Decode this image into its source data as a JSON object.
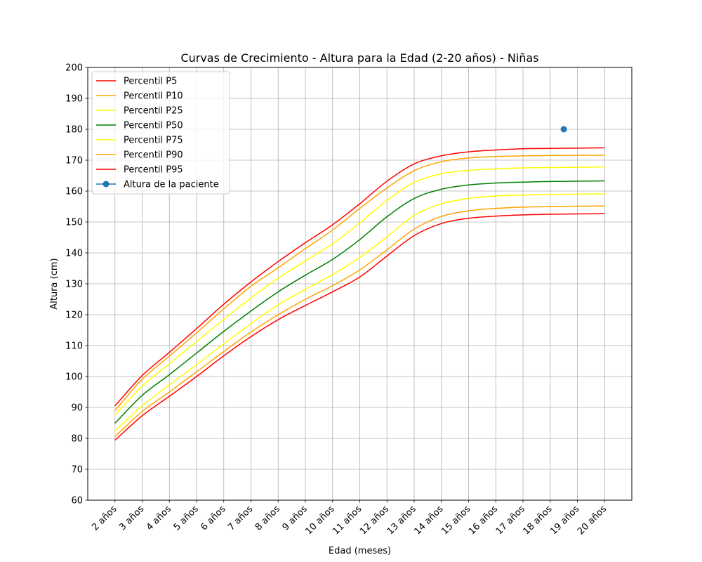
{
  "chart_data": {
    "type": "line",
    "title": "Curvas de Crecimiento - Altura para la Edad (2-20 años) - Niñas",
    "xlabel": "Edad (meses)",
    "ylabel": "Altura (cm)",
    "xlim": [
      1,
      21
    ],
    "ylim": [
      60,
      200
    ],
    "yticks": [
      60,
      70,
      80,
      90,
      100,
      110,
      120,
      130,
      140,
      150,
      160,
      170,
      180,
      190,
      200
    ],
    "xticks": [
      2,
      3,
      4,
      5,
      6,
      7,
      8,
      9,
      10,
      11,
      12,
      13,
      14,
      15,
      16,
      17,
      18,
      19,
      20
    ],
    "xtick_labels": [
      "2 años",
      "3 años",
      "4 años",
      "5 años",
      "6 años",
      "7 años",
      "8 años",
      "9 años",
      "10 años",
      "11 años",
      "12 años",
      "13 años",
      "14 años",
      "15 años",
      "16 años",
      "17 años",
      "18 años",
      "19 años",
      "20 años"
    ],
    "grid": true,
    "legend_position": "upper-left",
    "x": [
      2,
      3,
      4,
      5,
      6,
      7,
      8,
      9,
      10,
      11,
      12,
      13,
      14,
      15,
      16,
      17,
      18,
      19,
      20
    ],
    "series": [
      {
        "name": "Percentil P5",
        "color": "#ff0000",
        "values": [
          79.4,
          87.3,
          93.6,
          100.0,
          106.7,
          112.9,
          118.4,
          123.0,
          127.4,
          132.2,
          139.0,
          145.6,
          149.5,
          151.2,
          151.9,
          152.3,
          152.5,
          152.6,
          152.7
        ]
      },
      {
        "name": "Percentil P10",
        "color": "#ffa500",
        "values": [
          80.6,
          88.7,
          95.0,
          101.5,
          108.1,
          114.4,
          120.0,
          125.0,
          129.4,
          134.5,
          141.0,
          147.7,
          151.8,
          153.6,
          154.4,
          154.8,
          155.0,
          155.1,
          155.2
        ]
      },
      {
        "name": "Percentil P25",
        "color": "#ffff00",
        "values": [
          82.4,
          90.5,
          97.3,
          103.8,
          110.6,
          117.1,
          123.2,
          128.2,
          133.0,
          138.5,
          145.2,
          152.1,
          155.9,
          157.6,
          158.4,
          158.7,
          158.9,
          159.0,
          159.1
        ]
      },
      {
        "name": "Percentil P50",
        "color": "#008000",
        "values": [
          84.9,
          93.9,
          100.6,
          107.6,
          114.6,
          121.2,
          127.4,
          132.8,
          137.9,
          144.3,
          151.7,
          157.6,
          160.6,
          162.0,
          162.6,
          162.9,
          163.1,
          163.2,
          163.3
        ]
      },
      {
        "name": "Percentil P75",
        "color": "#ffff00",
        "values": [
          87.5,
          96.9,
          104.1,
          111.3,
          118.5,
          125.4,
          131.8,
          137.4,
          143.0,
          149.7,
          157.0,
          162.8,
          165.6,
          166.7,
          167.2,
          167.5,
          167.6,
          167.7,
          167.8
        ]
      },
      {
        "name": "Percentil P90",
        "color": "#ffa500",
        "values": [
          89.0,
          99.1,
          106.6,
          114.1,
          121.9,
          129.2,
          135.2,
          141.4,
          147.4,
          154.4,
          161.0,
          166.6,
          169.5,
          170.7,
          171.2,
          171.4,
          171.5,
          171.6,
          171.6
        ]
      },
      {
        "name": "Percentil P95",
        "color": "#ff0000",
        "values": [
          90.5,
          100.3,
          107.8,
          115.5,
          123.4,
          130.6,
          137.2,
          143.3,
          149.1,
          155.9,
          163.2,
          168.8,
          171.4,
          172.7,
          173.3,
          173.7,
          173.8,
          173.9,
          174.0
        ]
      }
    ],
    "points": [
      {
        "name": "Altura de la paciente",
        "color": "#1f77b4",
        "x": 18.5,
        "y": 180
      }
    ]
  }
}
